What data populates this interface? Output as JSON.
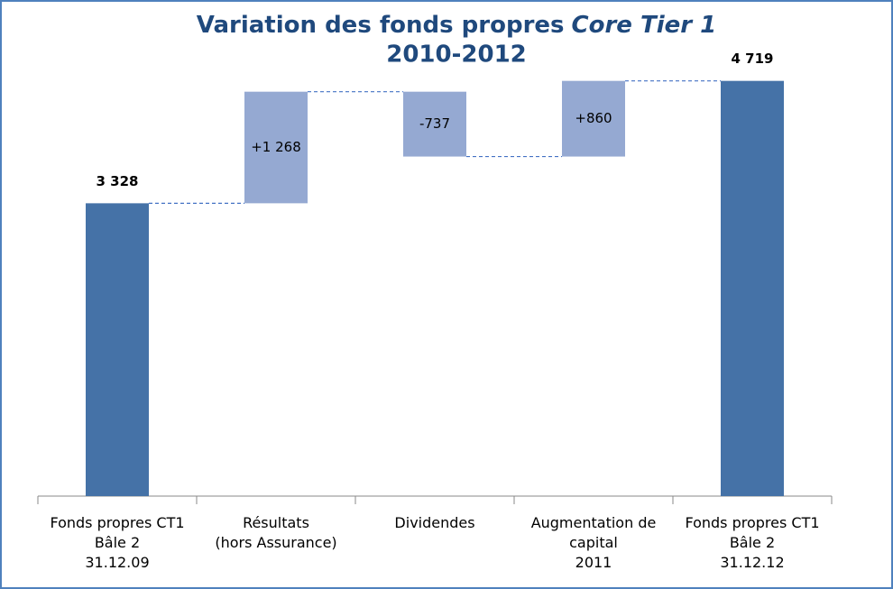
{
  "chart_data": {
    "type": "waterfall",
    "title": [
      "Variation des fonds propres",
      "Core Tier 1"
    ],
    "subtitle": "2010-2012",
    "categories": [
      [
        "Fonds propres CT1",
        "Bâle 2",
        "31.12.09"
      ],
      [
        "Résultats",
        "(hors Assurance)"
      ],
      [
        "Dividendes"
      ],
      [
        "Augmentation de",
        "capital",
        "2011"
      ],
      [
        "Fonds propres CT1",
        "Bâle 2",
        "31.12.12"
      ]
    ],
    "measures": [
      "total",
      "delta",
      "delta",
      "delta",
      "total"
    ],
    "values": [
      3328,
      1268,
      -737,
      860,
      4719
    ],
    "value_labels": [
      "3 328",
      "+1 268",
      "-737",
      "+860",
      "4 719"
    ],
    "colors": {
      "total": "#4572a7",
      "delta": "#95a9d2",
      "connector": "#4472c4"
    },
    "ylim": [
      0,
      5300
    ]
  }
}
